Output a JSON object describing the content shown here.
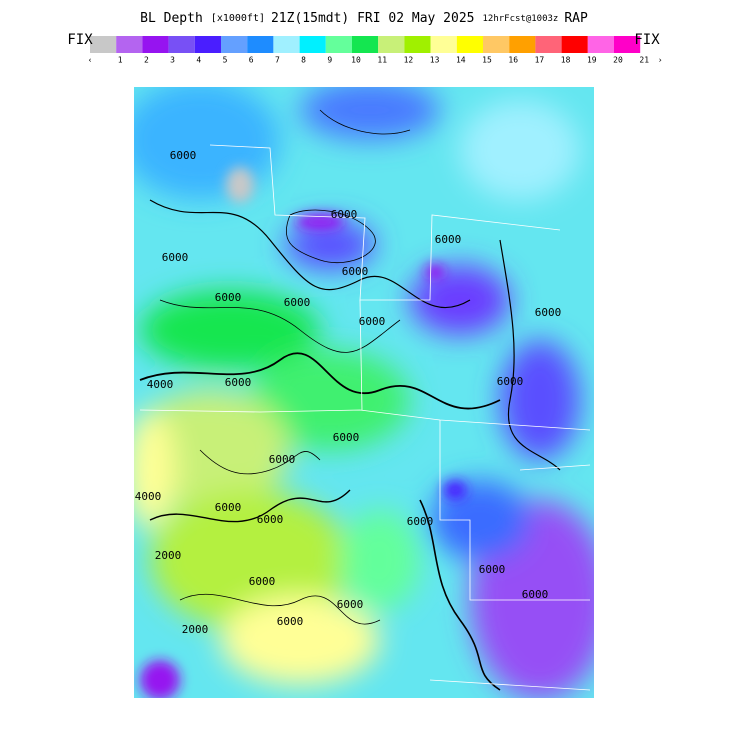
{
  "header": {
    "title_parts": [
      "BL Depth",
      "[x1000ft]",
      "21Z(15mdt) FRI 02 May 2025",
      "12hrFcst@1003z",
      "RAP"
    ]
  },
  "legend": {
    "left_label": "FIX",
    "right_label": "FIX",
    "colors": [
      "#c8c8c8",
      "#b464f0",
      "#9614f0",
      "#7850f5",
      "#4a1eff",
      "#64a0ff",
      "#1e8cff",
      "#a0f0ff",
      "#00f0ff",
      "#64ff9b",
      "#14e650",
      "#c8f078",
      "#a0f000",
      "#ffff96",
      "#ffff00",
      "#ffc864",
      "#ffa000",
      "#ff6478",
      "#ff0000",
      "#ff64e6",
      "#ff00c8"
    ],
    "labels": [
      "‹",
      "1",
      "2",
      "3",
      "4",
      "5",
      "6",
      "7",
      "8",
      "9",
      "10",
      "11",
      "12",
      "13",
      "14",
      "15",
      "16",
      "17",
      "18",
      "19",
      "20",
      "21",
      "›"
    ]
  },
  "map": {
    "contour_labels": [
      "6000",
      "6000",
      "6000",
      "6000",
      "6000",
      "6000",
      "6000",
      "6000",
      "6000",
      "6000",
      "4000",
      "6000",
      "6000",
      "6000",
      "6000",
      "6000",
      "4000",
      "2000",
      "6000",
      "6000",
      "2000",
      "6000",
      "6000",
      "6000",
      "6000"
    ]
  }
}
